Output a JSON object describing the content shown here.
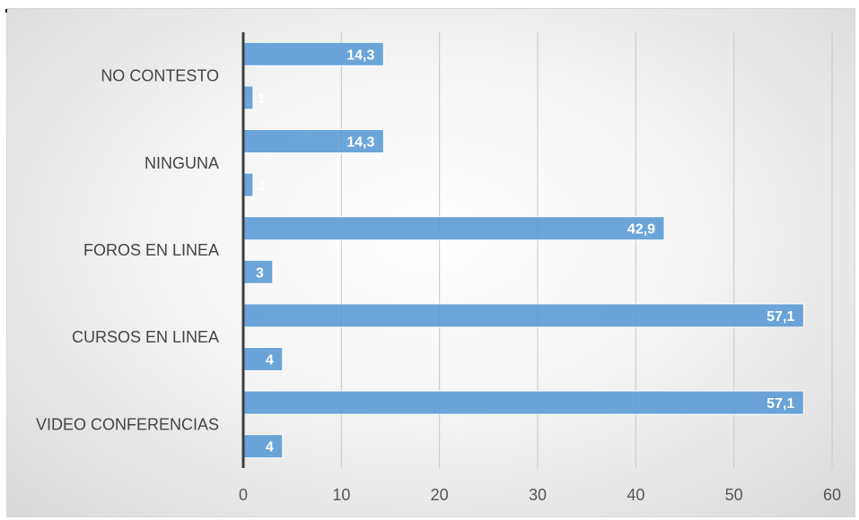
{
  "chart_data": {
    "type": "bar",
    "orientation": "horizontal",
    "categories": [
      "VIDEO CONFERENCIAS",
      "CURSOS EN LINEA",
      "FOROS EN LINEA",
      "NINGUNA",
      "NO CONTESTO"
    ],
    "series": [
      {
        "values": [
          4,
          4,
          3,
          1,
          1
        ],
        "labels": [
          "4",
          "4",
          "3",
          "1",
          "1"
        ]
      },
      {
        "values": [
          57.1,
          57.1,
          42.9,
          14.3,
          14.3
        ],
        "labels": [
          "57,1",
          "57,1",
          "42,9",
          "14,3",
          "14,3"
        ]
      }
    ],
    "xlim": [
      0,
      60
    ],
    "xticks": [
      "0",
      "10",
      "20",
      "30",
      "40",
      "50",
      "60"
    ],
    "grid": true,
    "bar_color": "#5b9bd5"
  }
}
